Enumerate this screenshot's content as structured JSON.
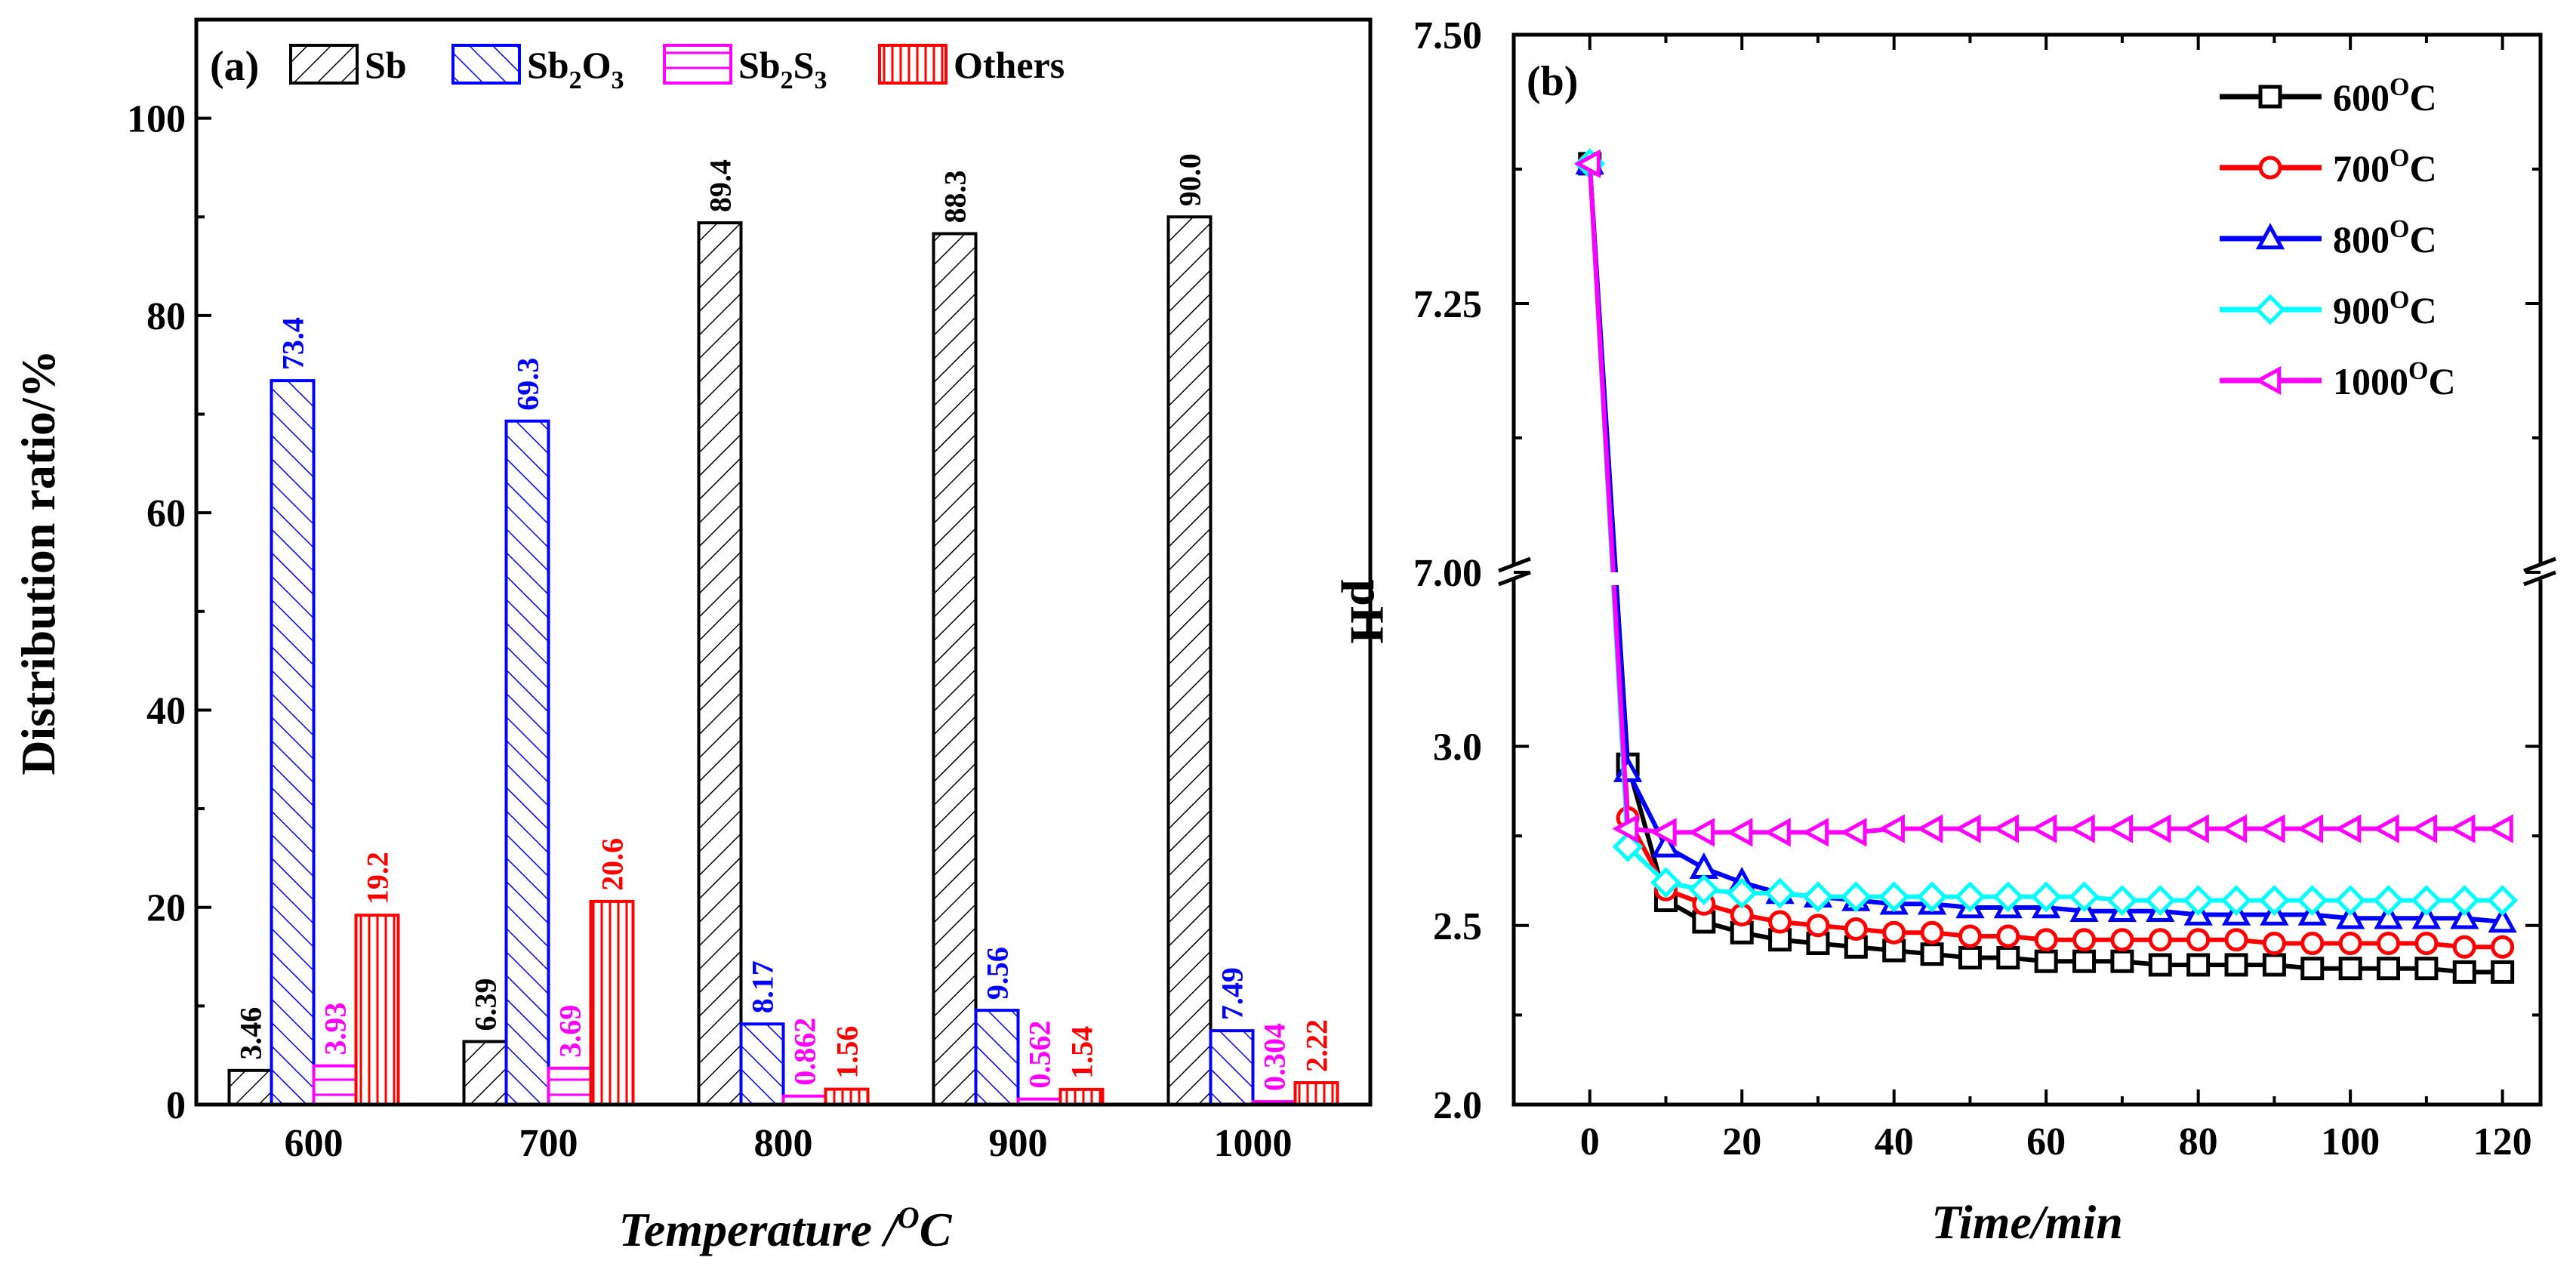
{
  "colors": {
    "sb": "#000000",
    "sb2o3": "#0000ff",
    "sb2s3": "#ff00ff",
    "others": "#ff0000",
    "t600": "#000000",
    "t700": "#ff0000",
    "t800": "#0000ff",
    "t900": "#00ffff",
    "t1000": "#ff00ff"
  },
  "chart_data": [
    {
      "type": "bar",
      "panel": "(a)",
      "xlabel": "Temperature /",
      "xlabel_unit_sup": "O",
      "xlabel_unit": "C",
      "ylabel": "Distribution ratio/%",
      "ylim": [
        0,
        110
      ],
      "yticks": [
        "0",
        "20",
        "40",
        "60",
        "80",
        "100"
      ],
      "categories": [
        "600",
        "700",
        "800",
        "900",
        "1000"
      ],
      "legend_position": "top",
      "series": [
        {
          "key": "sb",
          "name": "Sb",
          "name_parts": [
            [
              "Sb",
              ""
            ]
          ],
          "pattern": "hatch-right",
          "values": [
            3.46,
            6.39,
            89.4,
            88.3,
            90.0
          ],
          "labels": [
            "3.46",
            "6.39",
            "89.4",
            "88.3",
            "90.0"
          ]
        },
        {
          "key": "sb2o3",
          "name": "Sb2O3",
          "name_parts": [
            [
              "Sb",
              ""
            ],
            [
              "2",
              "sub"
            ],
            [
              "O",
              ""
            ],
            [
              "3",
              "sub"
            ]
          ],
          "pattern": "hatch-left",
          "values": [
            73.4,
            69.3,
            8.17,
            9.56,
            7.49
          ],
          "labels": [
            "73.4",
            "69.3",
            "8.17",
            "9.56",
            "7.49"
          ]
        },
        {
          "key": "sb2s3",
          "name": "Sb2S3",
          "name_parts": [
            [
              "Sb",
              ""
            ],
            [
              "2",
              "sub"
            ],
            [
              "S",
              ""
            ],
            [
              "3",
              "sub"
            ]
          ],
          "pattern": "horizontal",
          "values": [
            3.93,
            3.69,
            0.862,
            0.562,
            0.304
          ],
          "labels": [
            "3.93",
            "3.69",
            "0.862",
            "0.562",
            "0.304"
          ]
        },
        {
          "key": "others",
          "name": "Others",
          "name_parts": [
            [
              "Others",
              ""
            ]
          ],
          "pattern": "vertical",
          "values": [
            19.2,
            20.6,
            1.56,
            1.54,
            2.22
          ],
          "labels": [
            "19.2",
            "20.6",
            "1.56",
            "1.54",
            "2.22"
          ]
        }
      ]
    },
    {
      "type": "line",
      "panel": "(b)",
      "xlabel": "Time/min",
      "ylabel": "pH",
      "xlim": [
        -10,
        125
      ],
      "xticks": [
        "0",
        "20",
        "40",
        "60",
        "80",
        "100",
        "120"
      ],
      "y_axis_break": true,
      "ylim_lower": [
        2.0,
        3.45
      ],
      "ylim_upper": [
        7.0,
        7.5
      ],
      "yticks_lower": [
        "2.0",
        "2.5",
        "3.0"
      ],
      "yticks_upper": [
        "7.00",
        "7.25",
        "7.50"
      ],
      "legend_position": "top-right",
      "x": [
        0,
        5,
        10,
        15,
        20,
        25,
        30,
        35,
        40,
        45,
        50,
        55,
        60,
        65,
        70,
        75,
        80,
        85,
        90,
        95,
        100,
        105,
        110,
        115,
        120
      ],
      "series": [
        {
          "key": "t600",
          "name": "600",
          "name_sup": "O",
          "name_unit": "C",
          "marker": "square",
          "values": [
            7.38,
            2.95,
            2.57,
            2.51,
            2.48,
            2.46,
            2.45,
            2.44,
            2.43,
            2.42,
            2.41,
            2.41,
            2.4,
            2.4,
            2.4,
            2.39,
            2.39,
            2.39,
            2.39,
            2.38,
            2.38,
            2.38,
            2.38,
            2.37,
            2.37
          ]
        },
        {
          "key": "t700",
          "name": "700",
          "name_sup": "O",
          "name_unit": "C",
          "marker": "circle",
          "values": [
            7.38,
            2.8,
            2.6,
            2.56,
            2.53,
            2.51,
            2.5,
            2.49,
            2.48,
            2.48,
            2.47,
            2.47,
            2.46,
            2.46,
            2.46,
            2.46,
            2.46,
            2.46,
            2.45,
            2.45,
            2.45,
            2.45,
            2.45,
            2.44,
            2.44
          ]
        },
        {
          "key": "t800",
          "name": "800",
          "name_sup": "O",
          "name_unit": "C",
          "marker": "triangle-up",
          "values": [
            7.38,
            2.93,
            2.72,
            2.66,
            2.62,
            2.59,
            2.58,
            2.57,
            2.56,
            2.56,
            2.55,
            2.55,
            2.55,
            2.54,
            2.54,
            2.54,
            2.53,
            2.53,
            2.53,
            2.53,
            2.52,
            2.52,
            2.52,
            2.52,
            2.51
          ]
        },
        {
          "key": "t900",
          "name": "900",
          "name_sup": "O",
          "name_unit": "C",
          "marker": "diamond",
          "values": [
            7.38,
            2.72,
            2.62,
            2.6,
            2.59,
            2.59,
            2.58,
            2.58,
            2.58,
            2.58,
            2.58,
            2.58,
            2.58,
            2.58,
            2.57,
            2.57,
            2.57,
            2.57,
            2.57,
            2.57,
            2.57,
            2.57,
            2.57,
            2.57,
            2.57
          ]
        },
        {
          "key": "t1000",
          "name": "1000",
          "name_sup": "O",
          "name_unit": "C",
          "marker": "triangle-left",
          "values": [
            7.38,
            2.77,
            2.76,
            2.76,
            2.76,
            2.76,
            2.76,
            2.76,
            2.77,
            2.77,
            2.77,
            2.77,
            2.77,
            2.77,
            2.77,
            2.77,
            2.77,
            2.77,
            2.77,
            2.77,
            2.77,
            2.77,
            2.77,
            2.77,
            2.77
          ]
        }
      ]
    }
  ]
}
